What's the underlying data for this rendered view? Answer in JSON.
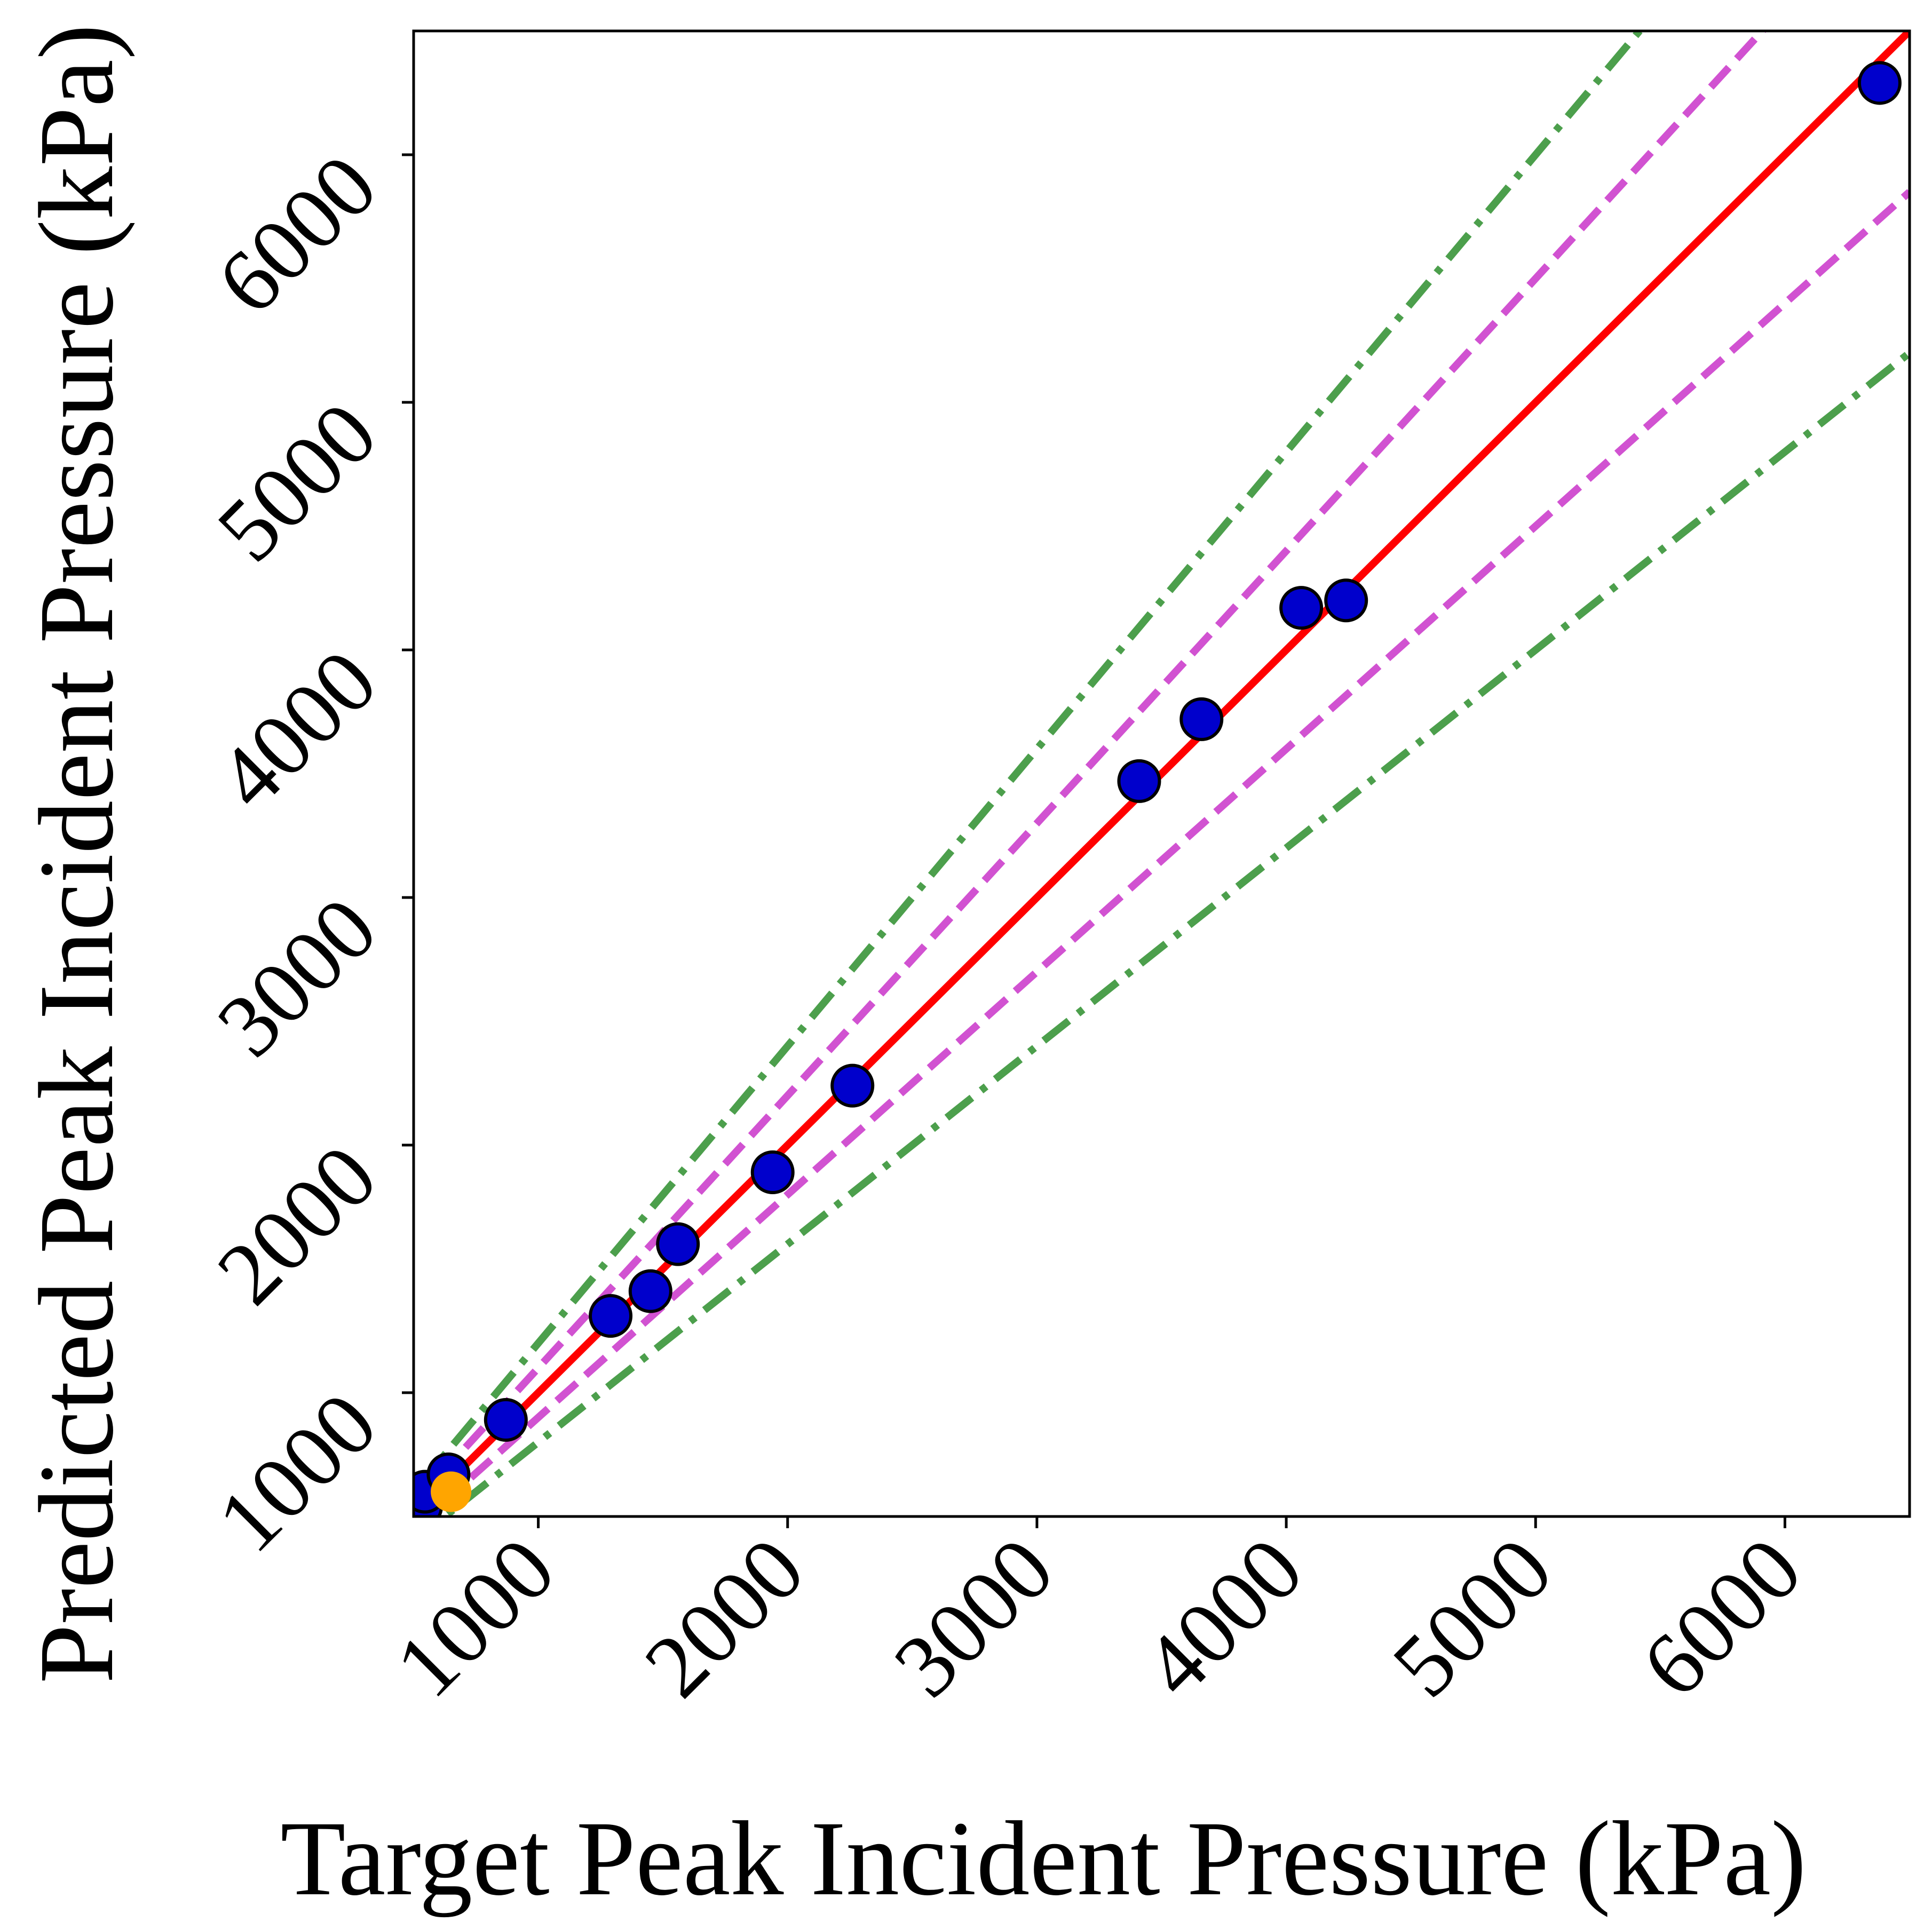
{
  "chart_data": {
    "type": "scatter",
    "title": "",
    "xlabel": "Target Peak Incident Pressure (kPa)",
    "ylabel": "Predicted Peak Incident Pressure (kPa)",
    "xlim": [
      500,
      6500
    ],
    "ylim": [
      500,
      6500
    ],
    "xticks": [
      "1000",
      "2000",
      "3000",
      "4000",
      "5000",
      "6000"
    ],
    "yticks": [
      "1000",
      "2000",
      "3000",
      "4000",
      "5000",
      "6000"
    ],
    "grid": false,
    "legend": "none",
    "reference_lines": [
      {
        "kind": "y = x",
        "slope": 1.0,
        "color": "#ff0000",
        "style": "solid"
      },
      {
        "kind": "+10%",
        "slope": 1.1,
        "color": "#d152d1",
        "style": "dashed"
      },
      {
        "kind": "-10%",
        "slope": 0.9,
        "color": "#d152d1",
        "style": "dashed"
      },
      {
        "kind": "+20%",
        "slope": 1.2,
        "color": "#4c9f4c",
        "style": "dash-dot"
      },
      {
        "kind": "-20%",
        "slope": 0.8,
        "color": "#4c9f4c",
        "style": "dash-dot"
      }
    ],
    "series": [
      {
        "color": "#0000cc",
        "points": [
          {
            "x": 530,
            "y": 540
          },
          {
            "x": 545,
            "y": 600
          },
          {
            "x": 640,
            "y": 670
          },
          {
            "x": 870,
            "y": 890
          },
          {
            "x": 1290,
            "y": 1310
          },
          {
            "x": 1450,
            "y": 1410
          },
          {
            "x": 1560,
            "y": 1600
          },
          {
            "x": 1940,
            "y": 1890
          },
          {
            "x": 2260,
            "y": 2240
          },
          {
            "x": 3410,
            "y": 3470
          },
          {
            "x": 3660,
            "y": 3720
          },
          {
            "x": 4060,
            "y": 4170
          },
          {
            "x": 4240,
            "y": 4200
          },
          {
            "x": 6380,
            "y": 6290
          }
        ]
      },
      {
        "color": "#ffa500",
        "points": [
          {
            "x": 650,
            "y": 600
          }
        ]
      }
    ]
  }
}
